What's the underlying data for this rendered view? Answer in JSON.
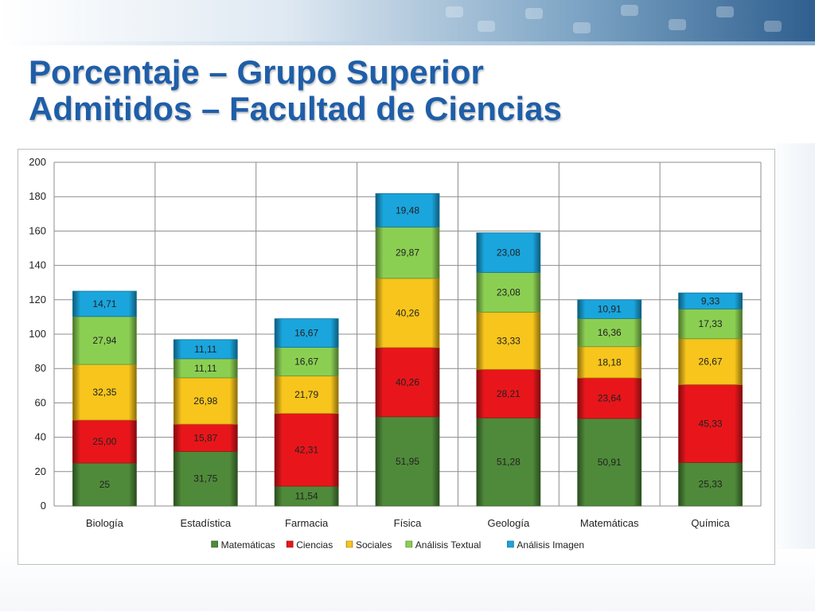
{
  "slide": {
    "title_line1": "Porcentaje – Grupo Superior",
    "title_line2": "Admitidos – Facultad de Ciencias"
  },
  "chart_data": {
    "type": "bar",
    "stacked": true,
    "categories": [
      "Biología",
      "Estadística",
      "Farmacia",
      "Física",
      "Geología",
      "Matemáticas",
      "Química"
    ],
    "series": [
      {
        "name": "Matemáticas",
        "color": "#4f8a3a",
        "values": [
          25,
          31.75,
          11.54,
          51.95,
          51.28,
          50.91,
          25.33
        ],
        "labels": [
          "25",
          "31,75",
          "11,54",
          "51,95",
          "51,28",
          "50,91",
          "25,33"
        ]
      },
      {
        "name": "Ciencias",
        "color": "#e8161b",
        "values": [
          25.0,
          15.87,
          42.31,
          40.26,
          28.21,
          23.64,
          45.33
        ],
        "labels": [
          "25,00",
          "15,87",
          "42,31",
          "40,26",
          "28,21",
          "23,64",
          "45,33"
        ]
      },
      {
        "name": "Sociales",
        "color": "#f7c51c",
        "values": [
          32.35,
          26.98,
          21.79,
          40.26,
          33.33,
          18.18,
          26.67
        ],
        "labels": [
          "32,35",
          "26,98",
          "21,79",
          "40,26",
          "33,33",
          "18,18",
          "26,67"
        ]
      },
      {
        "name": "Análisis Textual",
        "color": "#8bcf52",
        "values": [
          27.94,
          11.11,
          16.67,
          29.87,
          23.08,
          16.36,
          17.33
        ],
        "labels": [
          "27,94",
          "11,11",
          "16,67",
          "29,87",
          "23,08",
          "16,36",
          "17,33"
        ]
      },
      {
        "name": "Análisis Imagen",
        "color": "#1aa5dd",
        "values": [
          14.71,
          11.11,
          16.67,
          19.48,
          23.08,
          10.91,
          9.33
        ],
        "labels": [
          "14,71",
          "11,11",
          "16,67",
          "19,48",
          "23,08",
          "10,91",
          "9,33"
        ]
      }
    ],
    "ylim": [
      0,
      200
    ],
    "yticks": [
      0,
      20,
      40,
      60,
      80,
      100,
      120,
      140,
      160,
      180,
      200
    ],
    "grid": true,
    "legend_position": "bottom"
  }
}
